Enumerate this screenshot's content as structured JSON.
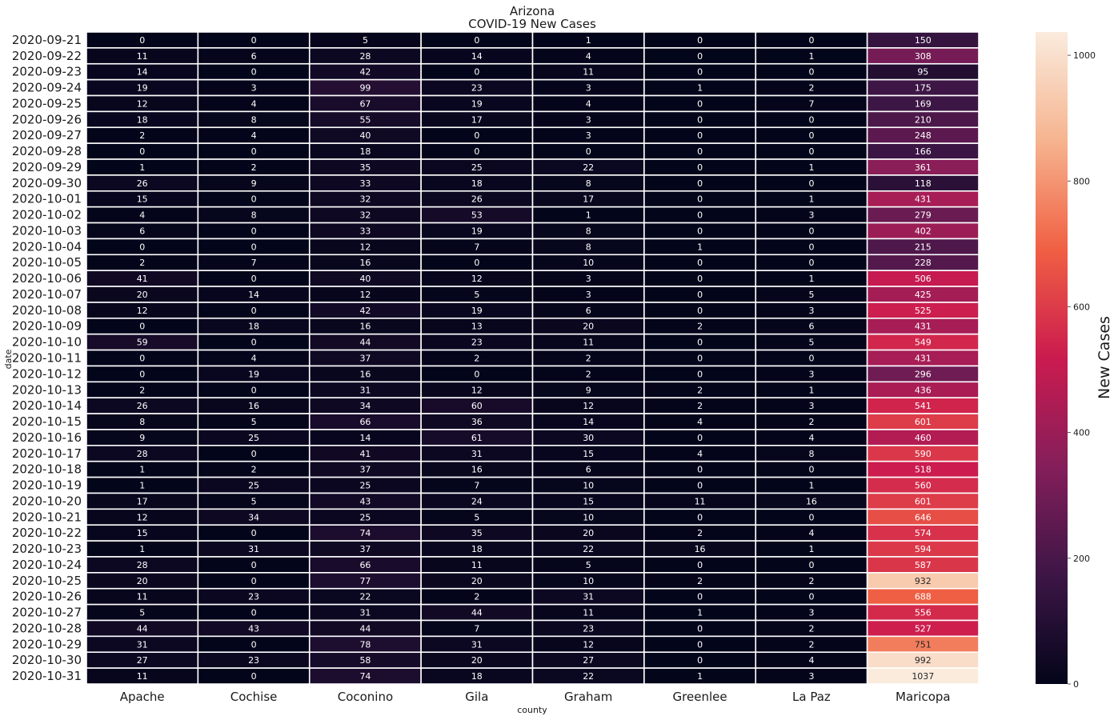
{
  "chart_data": {
    "type": "heatmap",
    "title": "Arizona",
    "subtitle": "COVID-19 New Cases",
    "xlabel": "county",
    "ylabel": "date",
    "colorbar_label": "New Cases",
    "colorbar_range": [
      0,
      1037
    ],
    "colorbar_ticks": [
      0,
      200,
      400,
      600,
      800,
      1000
    ],
    "colormap": "rocket",
    "colorbar_colors": [
      "#03051a",
      "#3d1646",
      "#841e5a",
      "#cb1b4f",
      "#f06043",
      "#f6b48f",
      "#faebdd"
    ],
    "gridlines": "white",
    "columns": [
      "Apache",
      "Cochise",
      "Coconino",
      "Gila",
      "Graham",
      "Greenlee",
      "La Paz",
      "Maricopa"
    ],
    "rows": [
      "2020-09-21",
      "2020-09-22",
      "2020-09-23",
      "2020-09-24",
      "2020-09-25",
      "2020-09-26",
      "2020-09-27",
      "2020-09-28",
      "2020-09-29",
      "2020-09-30",
      "2020-10-01",
      "2020-10-02",
      "2020-10-03",
      "2020-10-04",
      "2020-10-05",
      "2020-10-06",
      "2020-10-07",
      "2020-10-08",
      "2020-10-09",
      "2020-10-10",
      "2020-10-11",
      "2020-10-12",
      "2020-10-13",
      "2020-10-14",
      "2020-10-15",
      "2020-10-16",
      "2020-10-17",
      "2020-10-18",
      "2020-10-19",
      "2020-10-20",
      "2020-10-21",
      "2020-10-22",
      "2020-10-23",
      "2020-10-24",
      "2020-10-25",
      "2020-10-26",
      "2020-10-27",
      "2020-10-28",
      "2020-10-29",
      "2020-10-30",
      "2020-10-31"
    ],
    "values": [
      [
        0,
        0,
        5,
        0,
        1,
        0,
        0,
        150
      ],
      [
        11,
        6,
        28,
        14,
        4,
        0,
        1,
        308
      ],
      [
        14,
        0,
        42,
        0,
        11,
        0,
        0,
        95
      ],
      [
        19,
        3,
        99,
        23,
        3,
        1,
        2,
        175
      ],
      [
        12,
        4,
        67,
        19,
        4,
        0,
        7,
        169
      ],
      [
        18,
        8,
        55,
        17,
        3,
        0,
        0,
        210
      ],
      [
        2,
        4,
        40,
        0,
        3,
        0,
        0,
        248
      ],
      [
        0,
        0,
        18,
        0,
        0,
        0,
        0,
        166
      ],
      [
        1,
        2,
        35,
        25,
        22,
        0,
        1,
        361
      ],
      [
        26,
        9,
        33,
        18,
        8,
        0,
        0,
        118
      ],
      [
        15,
        0,
        32,
        26,
        17,
        0,
        1,
        431
      ],
      [
        4,
        8,
        32,
        53,
        1,
        0,
        3,
        279
      ],
      [
        6,
        0,
        33,
        19,
        8,
        0,
        0,
        402
      ],
      [
        0,
        0,
        12,
        7,
        8,
        1,
        0,
        215
      ],
      [
        2,
        7,
        16,
        0,
        10,
        0,
        0,
        228
      ],
      [
        41,
        0,
        40,
        12,
        3,
        0,
        1,
        506
      ],
      [
        20,
        14,
        12,
        5,
        3,
        0,
        5,
        425
      ],
      [
        12,
        0,
        42,
        19,
        6,
        0,
        3,
        525
      ],
      [
        0,
        18,
        16,
        13,
        20,
        2,
        6,
        431
      ],
      [
        59,
        0,
        44,
        23,
        11,
        0,
        5,
        549
      ],
      [
        0,
        4,
        37,
        2,
        2,
        0,
        0,
        431
      ],
      [
        0,
        19,
        16,
        0,
        2,
        0,
        3,
        296
      ],
      [
        2,
        0,
        31,
        12,
        9,
        2,
        1,
        436
      ],
      [
        26,
        16,
        34,
        60,
        12,
        2,
        3,
        541
      ],
      [
        8,
        5,
        66,
        36,
        14,
        4,
        2,
        601
      ],
      [
        9,
        25,
        14,
        61,
        30,
        0,
        4,
        460
      ],
      [
        28,
        0,
        41,
        31,
        15,
        4,
        8,
        590
      ],
      [
        1,
        2,
        37,
        16,
        6,
        0,
        0,
        518
      ],
      [
        1,
        25,
        25,
        7,
        10,
        0,
        1,
        560
      ],
      [
        17,
        5,
        43,
        24,
        15,
        11,
        16,
        601
      ],
      [
        12,
        34,
        25,
        5,
        10,
        0,
        0,
        646
      ],
      [
        15,
        0,
        74,
        35,
        20,
        2,
        4,
        574
      ],
      [
        1,
        31,
        37,
        18,
        22,
        16,
        1,
        594
      ],
      [
        28,
        0,
        66,
        11,
        5,
        0,
        0,
        587
      ],
      [
        20,
        0,
        77,
        20,
        10,
        2,
        2,
        932
      ],
      [
        11,
        23,
        22,
        2,
        31,
        0,
        0,
        688
      ],
      [
        5,
        0,
        31,
        44,
        11,
        1,
        3,
        556
      ],
      [
        44,
        43,
        44,
        7,
        23,
        0,
        2,
        527
      ],
      [
        31,
        0,
        78,
        31,
        12,
        0,
        2,
        751
      ],
      [
        27,
        23,
        58,
        20,
        27,
        0,
        4,
        992
      ],
      [
        11,
        0,
        74,
        18,
        22,
        1,
        3,
        1037
      ]
    ]
  }
}
